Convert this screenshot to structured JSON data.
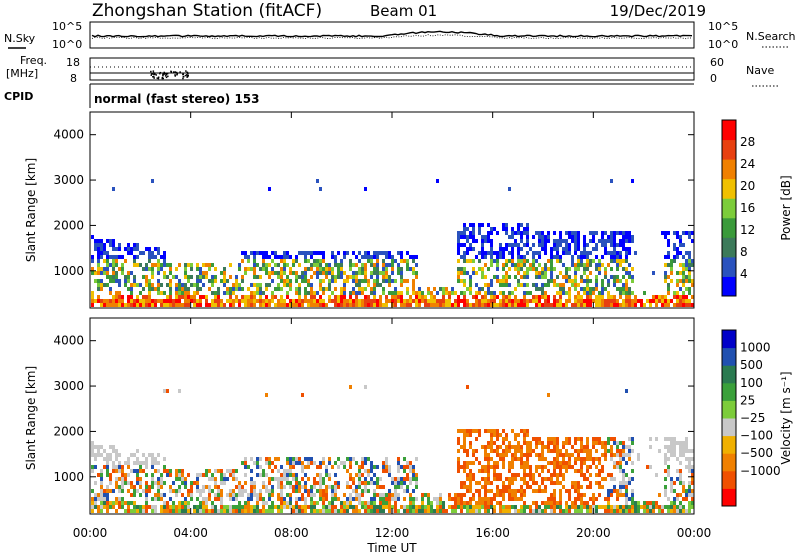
{
  "header": {
    "title": "Zhongshan Station (fitACF)",
    "beam": "Beam 01",
    "date": "19/Dec/2019"
  },
  "mode_label": "normal (fast stereo) 153",
  "noise_panel": {
    "left_label": "N.Sky",
    "right_label": "N.Search",
    "left_ticks": [
      "10^5",
      "10^0"
    ],
    "right_ticks": [
      "10^5",
      "10^0"
    ]
  },
  "freq_panel": {
    "left_label_1": "Freq.",
    "left_label_2": "[MHz]",
    "cpid_label": "CPID",
    "right_label": "Nave",
    "left_ticks": [
      "18",
      "8"
    ],
    "right_ticks": [
      "60",
      "0"
    ]
  },
  "colors": {
    "power": [
      "#0000ff",
      "#2a52be",
      "#3c7a5a",
      "#3a9a3a",
      "#7ccc3a",
      "#f0c000",
      "#f08000",
      "#e84010",
      "#ff0000"
    ],
    "velocity": [
      "#0000c8",
      "#2050b0",
      "#2a7a50",
      "#3aa03a",
      "#7ccc3a",
      "#c8c8c8",
      "#f0b000",
      "#f08000",
      "#f05000",
      "#ff0000"
    ]
  },
  "chart_data": [
    {
      "type": "heatmap",
      "name": "power",
      "ylabel": "Slant Range [km]",
      "ylim": [
        180,
        4500
      ],
      "yticks": [
        "1000",
        "2000",
        "3000",
        "4000"
      ],
      "ytick_values": [
        1000,
        2000,
        3000,
        4000
      ],
      "xlim": [
        0,
        24
      ],
      "colorbar": {
        "label": "Power [dB]",
        "ticks": [
          "4",
          "8",
          "12",
          "16",
          "20",
          "24",
          "28"
        ],
        "tick_values": [
          4,
          8,
          12,
          16,
          20,
          24,
          28
        ],
        "range": [
          0,
          32
        ]
      }
    },
    {
      "type": "heatmap",
      "name": "velocity",
      "ylabel": "Slant Range [km]",
      "ylim": [
        180,
        4500
      ],
      "yticks": [
        "1000",
        "2000",
        "3000",
        "4000"
      ],
      "ytick_values": [
        1000,
        2000,
        3000,
        4000
      ],
      "xlim": [
        0,
        24
      ],
      "xticks": [
        "00:00",
        "04:00",
        "08:00",
        "12:00",
        "16:00",
        "20:00",
        "00:00"
      ],
      "xtick_values": [
        0,
        4,
        8,
        12,
        16,
        20,
        24
      ],
      "xlabel": "Time UT",
      "colorbar": {
        "label": "Velocity [m s⁻¹]",
        "ticks": [
          "1000",
          "500",
          "100",
          "25",
          "−25",
          "−100",
          "−500",
          "−1000"
        ]
      }
    }
  ]
}
